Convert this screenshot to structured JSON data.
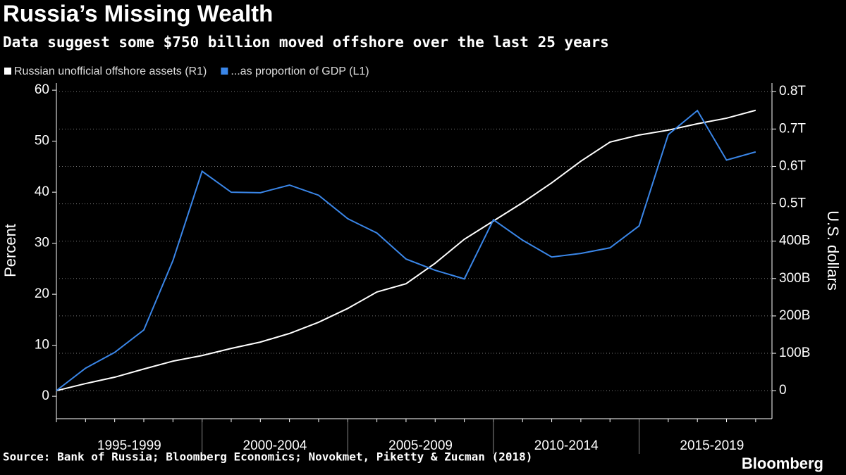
{
  "chart_data": {
    "type": "line",
    "title": "Russia’s Missing Wealth",
    "subtitle": "Data suggest some $750 billion moved offshore over the last 25 years",
    "ylabel": "Percent",
    "y2label": "U.S. dollars",
    "source": "Source: Bank of Russia; Bloomberg Economics; Novokmet, Piketty & Zucman (2018)",
    "brand": "Bloomberg",
    "x": [
      1995,
      1996,
      1997,
      1998,
      1999,
      2000,
      2001,
      2002,
      2003,
      2004,
      2005,
      2006,
      2007,
      2008,
      2009,
      2010,
      2011,
      2012,
      2013,
      2014,
      2015,
      2016,
      2017,
      2018,
      2019
    ],
    "xlim": [
      1995,
      2019.56
    ],
    "xticks": [
      {
        "value": 1997.5,
        "label": "1995-1999"
      },
      {
        "value": 2002.5,
        "label": "2000-2004"
      },
      {
        "value": 2007.5,
        "label": "2005-2009"
      },
      {
        "value": 2012.5,
        "label": "2010-2014"
      },
      {
        "value": 2017.5,
        "label": "2015-2019"
      }
    ],
    "xdividers": [
      2000,
      2005,
      2010,
      2015
    ],
    "ylim": [
      -4.4,
      61.4
    ],
    "yticks": [
      0,
      10,
      20,
      30,
      40,
      50,
      60
    ],
    "y2lim": [
      -75,
      823
    ],
    "y2ticks": [
      0,
      {
        "value": 100,
        "label": "100B"
      },
      {
        "value": 200,
        "label": "200B"
      },
      {
        "value": 300,
        "label": "300B"
      },
      {
        "value": 400,
        "label": "400B"
      },
      {
        "value": 500,
        "label": "0.5T"
      },
      {
        "value": 600,
        "label": "0.6T"
      },
      {
        "value": 700,
        "label": "0.7T"
      },
      {
        "value": 800,
        "label": "0.8T"
      }
    ],
    "grid": true,
    "legend": "top-left",
    "series": [
      {
        "name": "Russian unofficial offshore assets (R1)",
        "color": "#ffffff",
        "axis": "y2",
        "values": [
          0,
          19,
          36,
          58,
          79,
          94,
          113,
          130,
          153,
          183,
          220,
          264,
          286,
          341,
          405,
          454,
          503,
          556,
          614,
          665,
          684,
          697,
          714,
          729,
          750
        ]
      },
      {
        "name": "...as proportion of GDP (L1)",
        "color": "#3a86e8",
        "axis": "y",
        "values": [
          1.1,
          5.5,
          8.6,
          13.0,
          26.6,
          44.1,
          40.0,
          39.9,
          41.4,
          39.4,
          34.8,
          32.0,
          26.9,
          24.7,
          23.0,
          34.6,
          30.6,
          27.3,
          28.0,
          29.1,
          33.4,
          51.3,
          56.0,
          46.3,
          47.9
        ]
      }
    ]
  }
}
